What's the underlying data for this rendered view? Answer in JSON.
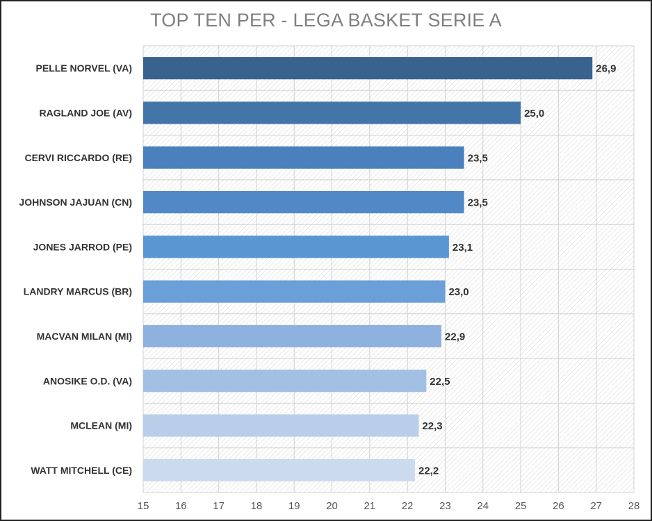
{
  "chart_data": {
    "type": "bar",
    "orientation": "horizontal",
    "title": "TOP TEN PER - LEGA BASKET SERIE A",
    "categories": [
      "PELLE NORVEL (VA)",
      "RAGLAND JOE (AV)",
      "CERVI RICCARDO (RE)",
      "JOHNSON JAJUAN (CN)",
      "JONES JARROD (PE)",
      "LANDRY MARCUS (BR)",
      "MACVAN MILAN (MI)",
      "ANOSIKE O.D. (VA)",
      "MCLEAN  (MI)",
      "WATT MITCHELL (CE)"
    ],
    "values": [
      26.9,
      25.0,
      23.5,
      23.5,
      23.1,
      23.0,
      22.9,
      22.5,
      22.3,
      22.2
    ],
    "value_labels": [
      "26,9",
      "25,0",
      "23,5",
      "23,5",
      "23,1",
      "23,0",
      "22,9",
      "22,5",
      "22,3",
      "22,2"
    ],
    "xlim": [
      15,
      28
    ],
    "xticks": [
      15,
      16,
      17,
      18,
      19,
      20,
      21,
      22,
      23,
      24,
      25,
      26,
      27,
      28
    ],
    "xlabel": "",
    "ylabel": "",
    "grid": true,
    "legend": "none",
    "colors": [
      "#3a628f",
      "#4475a8",
      "#4a80bd",
      "#5089c6",
      "#5a97d2",
      "#6a9fd8",
      "#8fb1de",
      "#a2bfe4",
      "#b9cee9",
      "#cbdaee"
    ]
  }
}
